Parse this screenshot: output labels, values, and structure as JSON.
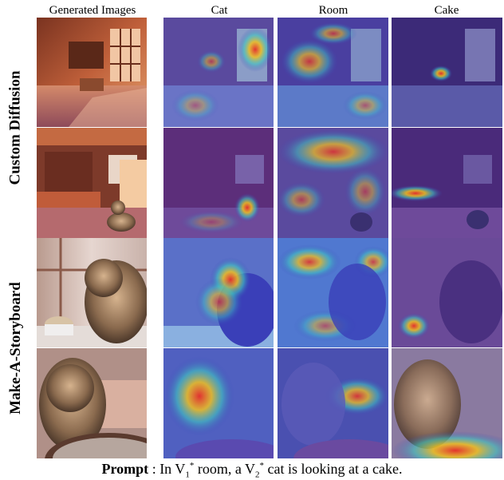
{
  "columns": [
    "Generated Images",
    "Cat",
    "Room",
    "Cake"
  ],
  "rows": [
    "Custom Diffusion",
    "Make-A-Storyboard"
  ],
  "prompt": {
    "label": "Prompt",
    "separator": " : In V",
    "sub1": "1",
    "sup1": "*",
    "mid": " room, a V",
    "sub2": "2",
    "sup2": "*",
    "end": " cat is looking at a cake."
  },
  "colors": {
    "room_warm": "#b5552e",
    "room_wood": "#7a3a24",
    "window_light": "#f3c8a8",
    "storyboard_room": "#d9c7c3",
    "cat_fur": "#8a6a4e",
    "cake": "#d8c3a6",
    "heatmap_cool": "#3a3fb8",
    "heatmap_hot": "#e8302a"
  }
}
